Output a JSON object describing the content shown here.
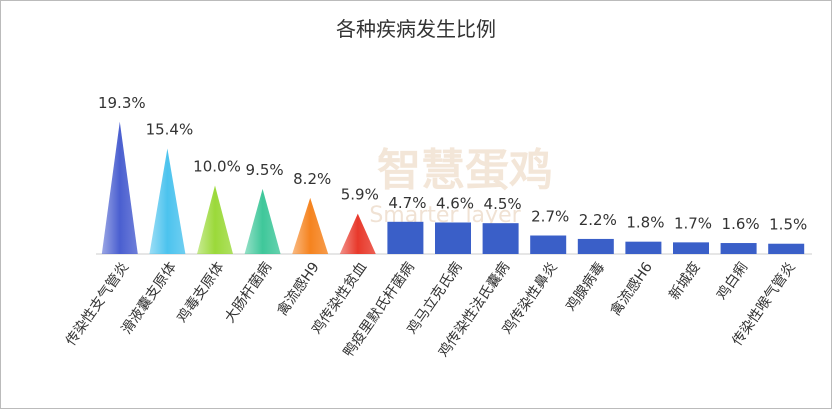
{
  "chart_data": {
    "type": "bar",
    "title": "各种疾病发生比例",
    "watermark": "智慧蛋鸡",
    "watermark_subtitle": "Smarter layer",
    "categories": [
      "传染性支气管炎",
      "滑液囊支原体",
      "鸡毒支原体",
      "大肠杆菌病",
      "禽流感H9",
      "鸡传染性贫血",
      "鸭疫里默氏杆菌病",
      "鸡马立克氏病",
      "鸡传染性法氏囊病",
      "鸡传染性鼻炎",
      "鸡腺病毒",
      "禽流感H6",
      "新城疫",
      "鸡白痢",
      "传染性喉气管炎"
    ],
    "values": [
      19.3,
      15.4,
      10.0,
      9.5,
      8.2,
      5.9,
      4.7,
      4.6,
      4.5,
      2.7,
      2.2,
      1.8,
      1.7,
      1.6,
      1.5
    ],
    "value_labels": [
      "19.3%",
      "15.4%",
      "10.0%",
      "9.5%",
      "8.2%",
      "5.9%",
      "4.7%",
      "4.6%",
      "4.5%",
      "2.7%",
      "2.2%",
      "1.8%",
      "1.7%",
      "1.6%",
      "1.5%"
    ],
    "colors": [
      "#4a5fd0",
      "#4cc3ee",
      "#9bd93a",
      "#3fc79a",
      "#f5831f",
      "#e8392b",
      "#3a5fc8",
      "#3a5fc8",
      "#3a5fc8",
      "#3a5fc8",
      "#3a5fc8",
      "#3a5fc8",
      "#3a5fc8",
      "#3a5fc8",
      "#3a5fc8"
    ],
    "mark_shapes": [
      "triangle",
      "triangle",
      "triangle",
      "triangle",
      "triangle",
      "triangle",
      "rect",
      "rect",
      "rect",
      "rect",
      "rect",
      "rect",
      "rect",
      "rect",
      "rect"
    ]
  }
}
